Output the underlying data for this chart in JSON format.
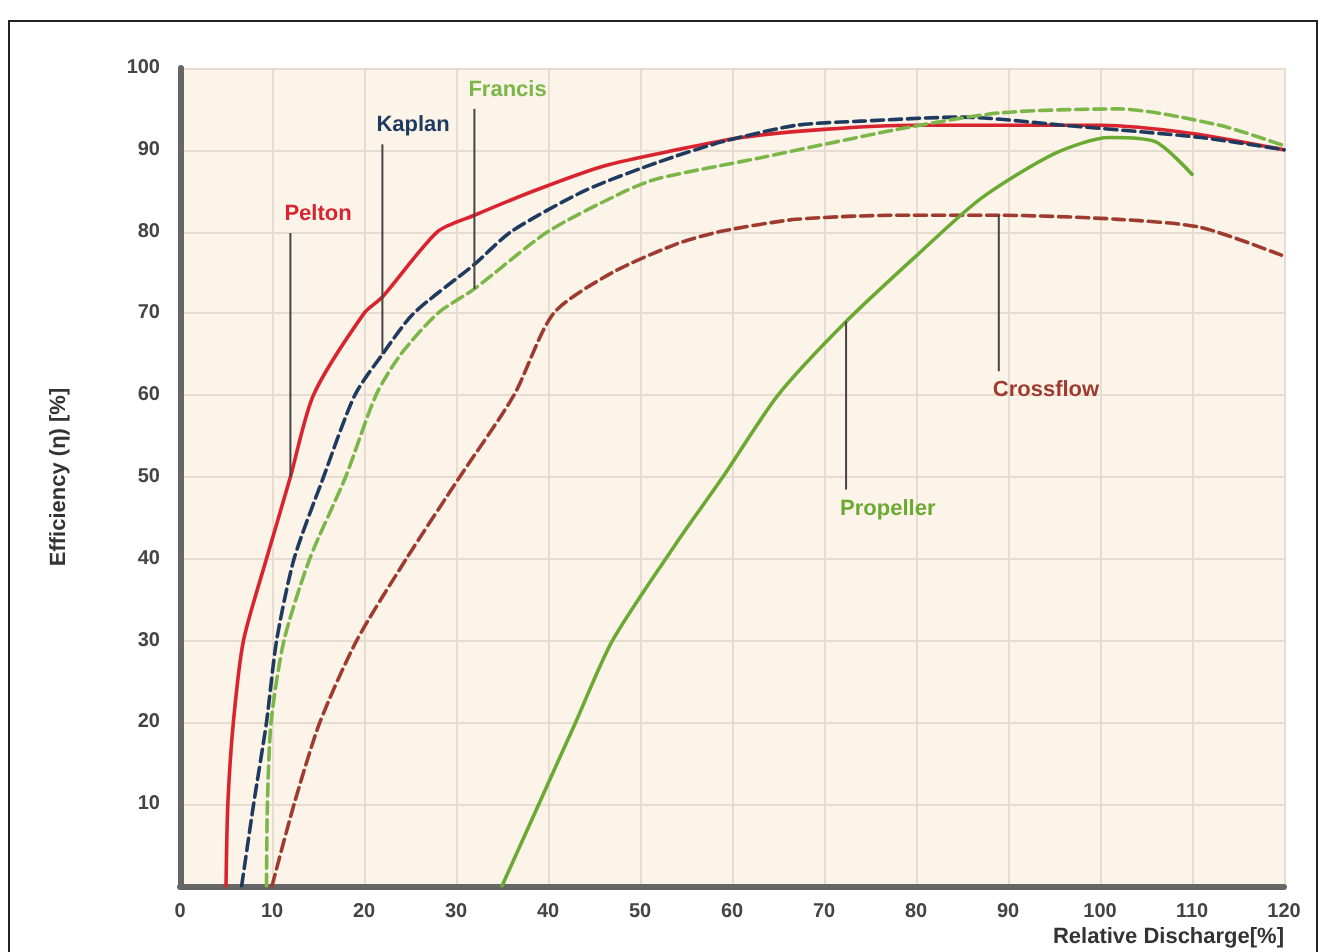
{
  "chart_data": {
    "type": "line",
    "xlabel": "Relative Discharge[%]",
    "ylabel": "Efficiency (η) [%]",
    "xlim": [
      0,
      120
    ],
    "xticks": [
      0,
      10,
      20,
      30,
      40,
      50,
      60,
      70,
      80,
      90,
      100,
      110,
      120
    ],
    "ylim": [
      0,
      100
    ],
    "yticks": [
      10,
      20,
      30,
      40,
      50,
      60,
      70,
      80,
      90,
      100
    ],
    "grid": true,
    "legend": false,
    "marker": "none",
    "series": [
      {
        "name": "Pelton",
        "color": "#d9232e",
        "line_style": "solid",
        "x": [
          5,
          5.2,
          5.8,
          6.9,
          9.4,
          12,
          14.5,
          20,
          22,
          28,
          32,
          38.5,
          46,
          54,
          61,
          70,
          80,
          90,
          100,
          110,
          120
        ],
        "values": [
          0,
          10,
          20,
          30,
          40,
          50,
          60,
          70,
          72,
          80,
          82,
          85,
          88,
          90,
          91.5,
          92.5,
          93,
          93,
          93,
          92,
          90
        ]
      },
      {
        "name": "Kaplan",
        "color": "#1f3a5f",
        "line_style": "dashed",
        "x": [
          6.7,
          8,
          9.4,
          10.5,
          12.4,
          15.6,
          19,
          22,
          25.4,
          32,
          36,
          44,
          52,
          59,
          67,
          74,
          85,
          96,
          111,
          120
        ],
        "values": [
          0,
          10,
          20,
          30,
          40,
          50,
          60,
          65,
          70,
          76,
          80,
          85,
          88.5,
          91,
          93,
          93.5,
          94,
          93,
          91.5,
          90
        ]
      },
      {
        "name": "Francis",
        "color": "#7ab648",
        "line_style": "dashed",
        "x": [
          9.4,
          9.5,
          9.9,
          11.3,
          14.1,
          18,
          21.3,
          24,
          28,
          32,
          40,
          48.5,
          52,
          63,
          78,
          89,
          102,
          113,
          120
        ],
        "values": [
          0,
          10,
          20,
          30,
          40,
          50,
          60,
          65,
          70,
          73,
          80,
          85,
          86.5,
          89,
          92.5,
          94.5,
          95,
          93,
          90.5
        ]
      },
      {
        "name": "Crossflow",
        "color": "#9e3a2e",
        "line_style": "dashed",
        "x": [
          10,
          12.4,
          15.2,
          19.2,
          24.6,
          30.4,
          36.3,
          40.6,
          47,
          54,
          58.7,
          67,
          78,
          89,
          102,
          111,
          120
        ],
        "values": [
          0,
          10,
          20,
          30,
          40,
          50,
          60,
          70,
          75,
          78.5,
          80,
          81.5,
          82,
          82,
          81.5,
          80.5,
          77
        ]
      },
      {
        "name": "Propeller",
        "color": "#6aaa32",
        "line_style": "solid",
        "x": [
          35,
          39,
          43,
          47,
          54,
          59,
          65,
          72.4,
          80,
          87,
          95,
          101,
          106,
          110
        ],
        "values": [
          0,
          10,
          20,
          30,
          42,
          50,
          60,
          69,
          77,
          84,
          89.5,
          91.5,
          91,
          87
        ]
      }
    ]
  }
}
